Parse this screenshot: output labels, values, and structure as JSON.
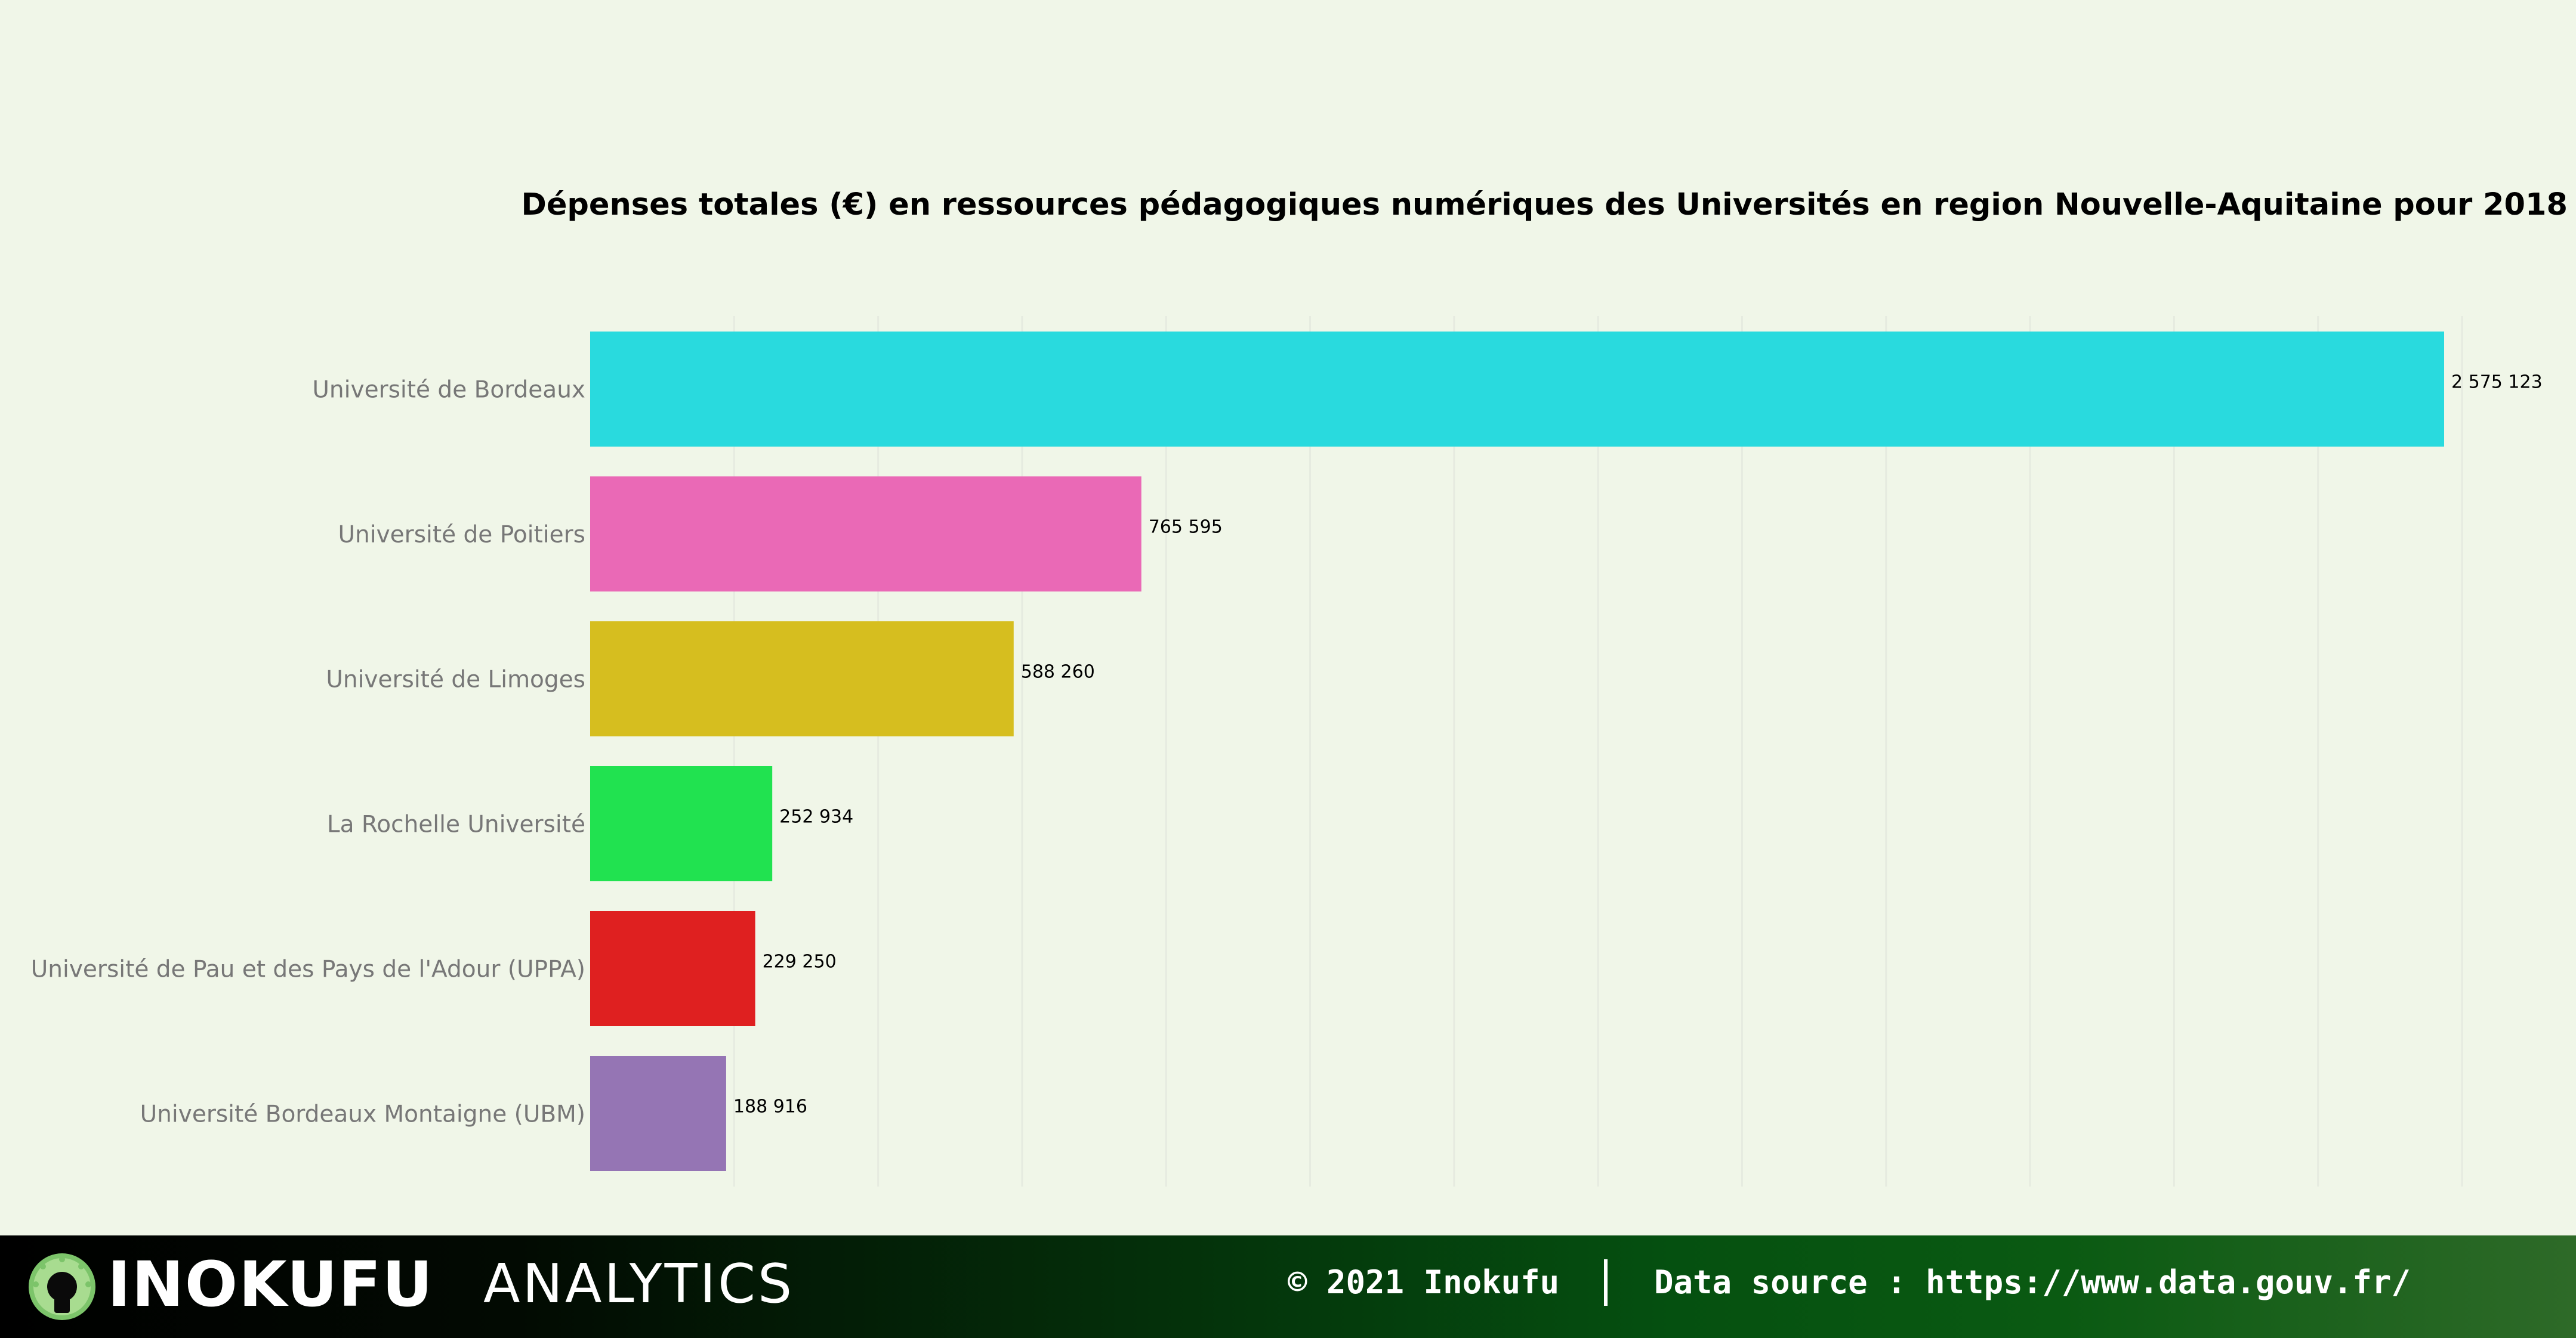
{
  "chart_data": {
    "type": "bar",
    "orientation": "horizontal",
    "title": "Dépenses totales (€) en ressources pédagogiques numériques des Universités en region Nouvelle-Aquitaine pour 2018",
    "categories": [
      "Université de Bordeaux",
      "Université de Poitiers",
      "Université de Limoges",
      "La Rochelle Université",
      "Université de Pau et des Pays de l'Adour (UPPA)",
      "Université Bordeaux Montaigne (UBM)"
    ],
    "values": [
      2575123,
      765595,
      588260,
      252934,
      229250,
      188916
    ],
    "value_labels": [
      "2 575 123",
      "765 595",
      "588 260",
      "252 934",
      "229 250",
      "188 916"
    ],
    "colors": [
      "#29dade",
      "#ea69b6",
      "#d6be1f",
      "#21e250",
      "#df2020",
      "#9575b4"
    ],
    "xlim": [
      0,
      2700000
    ],
    "grid": true,
    "x_tick_labels_visible": false,
    "legend": "none"
  },
  "footer": {
    "brand": "INOKUFU",
    "brand_sub": "ANALYTICS",
    "copyright": "© 2021 Inokufu",
    "source": "Data source : https://www.data.gouv.fr/",
    "logo_icon": "bulb-icon"
  }
}
